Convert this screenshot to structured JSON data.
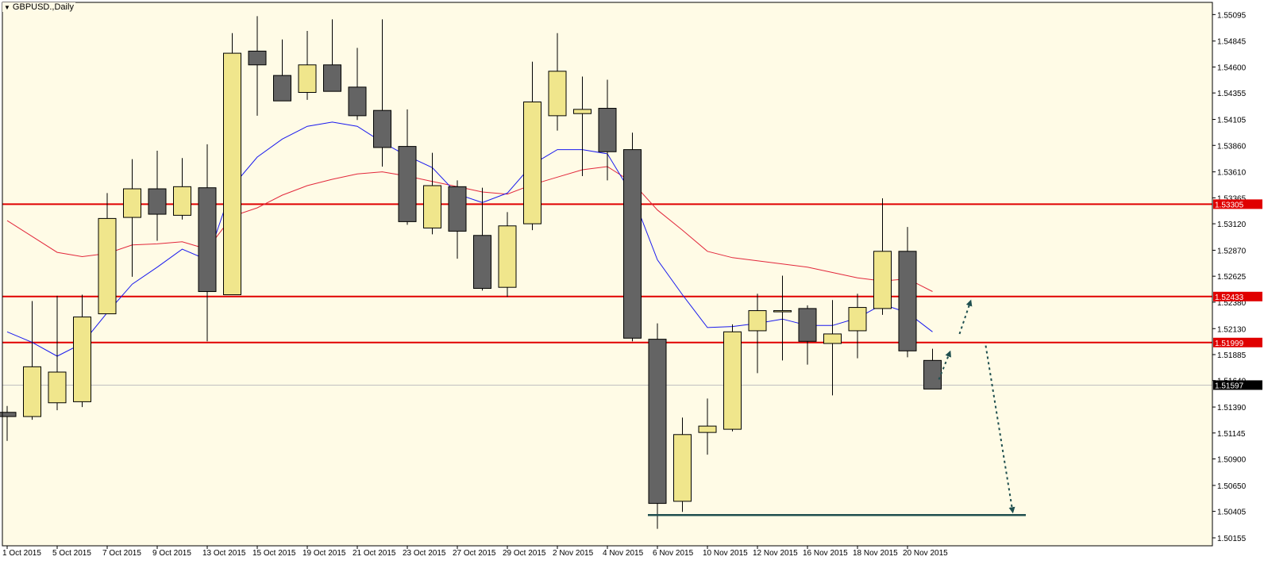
{
  "chart_data": {
    "type": "candlestick",
    "title": "GBPUSD.,Daily",
    "symbol": "GBPUSD.",
    "timeframe": "Daily",
    "y_ticks": [
      "1.55095",
      "1.54845",
      "1.54600",
      "1.54355",
      "1.54105",
      "1.53860",
      "1.53610",
      "1.53365",
      "1.53120",
      "1.52870",
      "1.52625",
      "1.52380",
      "1.52130",
      "1.51885",
      "1.51640",
      "1.51390",
      "1.51145",
      "1.50900",
      "1.50650",
      "1.50405",
      "1.50155"
    ],
    "ylim": [
      1.5008,
      1.5521
    ],
    "x_ticks": [
      "1 Oct 2015",
      "5 Oct 2015",
      "7 Oct 2015",
      "9 Oct 2015",
      "13 Oct 2015",
      "15 Oct 2015",
      "19 Oct 2015",
      "21 Oct 2015",
      "23 Oct 2015",
      "27 Oct 2015",
      "29 Oct 2015",
      "2 Nov 2015",
      "4 Nov 2015",
      "6 Nov 2015",
      "10 Nov 2015",
      "12 Nov 2015",
      "16 Nov 2015",
      "18 Nov 2015",
      "20 Nov 2015"
    ],
    "candles": [
      {
        "o": 1.5134,
        "h": 1.514,
        "l": 1.5107,
        "c": 1.513
      },
      {
        "o": 1.513,
        "h": 1.5239,
        "l": 1.5127,
        "c": 1.5177
      },
      {
        "o": 1.5143,
        "h": 1.5244,
        "l": 1.5136,
        "c": 1.5172
      },
      {
        "o": 1.5144,
        "h": 1.5245,
        "l": 1.5139,
        "c": 1.5224
      },
      {
        "o": 1.5227,
        "h": 1.5341,
        "l": 1.5227,
        "c": 1.5317
      },
      {
        "o": 1.5318,
        "h": 1.5373,
        "l": 1.5262,
        "c": 1.5345
      },
      {
        "o": 1.5345,
        "h": 1.5381,
        "l": 1.5296,
        "c": 1.5321
      },
      {
        "o": 1.532,
        "h": 1.5374,
        "l": 1.5316,
        "c": 1.5347
      },
      {
        "o": 1.5346,
        "h": 1.5387,
        "l": 1.5201,
        "c": 1.5248
      },
      {
        "o": 1.5245,
        "h": 1.5492,
        "l": 1.5245,
        "c": 1.5473
      },
      {
        "o": 1.5475,
        "h": 1.5508,
        "l": 1.5414,
        "c": 1.5462
      },
      {
        "o": 1.5452,
        "h": 1.5486,
        "l": 1.5432,
        "c": 1.5428
      },
      {
        "o": 1.5436,
        "h": 1.5494,
        "l": 1.5429,
        "c": 1.5462
      },
      {
        "o": 1.5462,
        "h": 1.5505,
        "l": 1.5437,
        "c": 1.5437
      },
      {
        "o": 1.5441,
        "h": 1.5478,
        "l": 1.541,
        "c": 1.5414
      },
      {
        "o": 1.5419,
        "h": 1.5505,
        "l": 1.5366,
        "c": 1.5384
      },
      {
        "o": 1.5385,
        "h": 1.542,
        "l": 1.5311,
        "c": 1.5314
      },
      {
        "o": 1.5308,
        "h": 1.5379,
        "l": 1.5302,
        "c": 1.5348
      },
      {
        "o": 1.5347,
        "h": 1.5353,
        "l": 1.5279,
        "c": 1.5305
      },
      {
        "o": 1.5301,
        "h": 1.5346,
        "l": 1.5249,
        "c": 1.5251
      },
      {
        "o": 1.5252,
        "h": 1.5323,
        "l": 1.5243,
        "c": 1.531
      },
      {
        "o": 1.5312,
        "h": 1.5465,
        "l": 1.5306,
        "c": 1.5427
      },
      {
        "o": 1.5414,
        "h": 1.5492,
        "l": 1.54,
        "c": 1.5456
      },
      {
        "o": 1.5416,
        "h": 1.5451,
        "l": 1.5357,
        "c": 1.542
      },
      {
        "o": 1.5421,
        "h": 1.5448,
        "l": 1.5353,
        "c": 1.538
      },
      {
        "o": 1.5382,
        "h": 1.5398,
        "l": 1.5201,
        "c": 1.5204
      },
      {
        "o": 1.5203,
        "h": 1.5218,
        "l": 1.5024,
        "c": 1.5048
      },
      {
        "o": 1.505,
        "h": 1.5129,
        "l": 1.504,
        "c": 1.5113
      },
      {
        "o": 1.5115,
        "h": 1.5147,
        "l": 1.5094,
        "c": 1.5121
      },
      {
        "o": 1.5118,
        "h": 1.5217,
        "l": 1.5116,
        "c": 1.521
      },
      {
        "o": 1.5211,
        "h": 1.5246,
        "l": 1.5171,
        "c": 1.523
      },
      {
        "o": 1.523,
        "h": 1.5263,
        "l": 1.5183,
        "c": 1.523
      },
      {
        "o": 1.5232,
        "h": 1.5235,
        "l": 1.5179,
        "c": 1.5201
      },
      {
        "o": 1.5199,
        "h": 1.524,
        "l": 1.515,
        "c": 1.5208
      },
      {
        "o": 1.5211,
        "h": 1.5246,
        "l": 1.5185,
        "c": 1.5233
      },
      {
        "o": 1.5232,
        "h": 1.5336,
        "l": 1.5226,
        "c": 1.5286
      },
      {
        "o": 1.5286,
        "h": 1.5309,
        "l": 1.5186,
        "c": 1.5192
      },
      {
        "o": 1.5183,
        "h": 1.5194,
        "l": 1.5157,
        "c": 1.5156
      }
    ],
    "ma_blue": [
      1.521,
      1.52,
      1.5187,
      1.5199,
      1.5228,
      1.5255,
      1.5271,
      1.5288,
      1.5278,
      1.5347,
      1.5375,
      1.5392,
      1.5404,
      1.5408,
      1.5404,
      1.5389,
      1.5376,
      1.5365,
      1.534,
      1.5332,
      1.5341,
      1.5368,
      1.5382,
      1.5382,
      1.5378,
      1.5339,
      1.5278,
      1.5245,
      1.5214,
      1.5215,
      1.5218,
      1.5222,
      1.5216,
      1.5216,
      1.5223,
      1.5236,
      1.5228,
      1.521
    ],
    "ma_red": [
      1.5315,
      1.53,
      1.5285,
      1.5281,
      1.5284,
      1.5292,
      1.5293,
      1.5295,
      1.5288,
      1.5319,
      1.5327,
      1.5339,
      1.5348,
      1.5354,
      1.5359,
      1.5361,
      1.5357,
      1.5352,
      1.5347,
      1.5342,
      1.534,
      1.5349,
      1.5356,
      1.5363,
      1.5366,
      1.5351,
      1.5325,
      1.5306,
      1.5286,
      1.528,
      1.5277,
      1.5274,
      1.5271,
      1.5266,
      1.5261,
      1.5258,
      1.526,
      1.5248
    ],
    "levels": [
      {
        "price": 1.53305,
        "label": "1.53305",
        "color": "#e00000"
      },
      {
        "price": 1.52433,
        "label": "1.52433",
        "color": "#e00000"
      },
      {
        "price": 1.51999,
        "label": "1.51999",
        "color": "#e00000"
      }
    ],
    "current_price": {
      "price": 1.51597,
      "label": "1.51597"
    },
    "support_line": {
      "price": 1.5037,
      "from_index": 26,
      "to_index": 42,
      "color": "#1f4f4f"
    },
    "colors": {
      "background": "#fffbe6",
      "bull_body": "#f0e68c",
      "bear_body": "#646464",
      "wick": "#000000",
      "ma_blue": "#1a1aee",
      "ma_red": "#e2283c",
      "arrows": "#1f4f4f"
    }
  }
}
